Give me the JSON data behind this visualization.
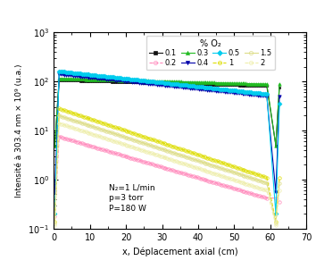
{
  "ylabel": "Intensité à 303.4 nm × 10⁹ (u.a.)",
  "xlabel": "x, Déplacement axial (cm)",
  "xlim": [
    0,
    70
  ],
  "ylim": [
    0.1,
    1000
  ],
  "annotation": "N₂=1 L/min\np=3 torr\nP=180 W",
  "legend_title": "% O₂",
  "series": [
    {
      "label": "0.1",
      "color": "#111111",
      "marker": "s",
      "mfc": "#111111",
      "mec": "#111111",
      "ls": "-",
      "lw": 0.8,
      "ms": 2.0,
      "x_left": 0.3,
      "y_left": 5.0,
      "x_p0": 1.5,
      "y_p0": 105,
      "x_p1": 59,
      "y_p1": 80,
      "x_right": 61.5,
      "y_right": 5.0,
      "x_r": 62.5,
      "y_r": 75
    },
    {
      "label": "0.2",
      "color": "#ff88bb",
      "marker": "o",
      "mfc": "none",
      "mec": "#ff88bb",
      "ls": "--",
      "lw": 0.8,
      "ms": 2.5,
      "x_left": 0.3,
      "y_left": 0.18,
      "x_p0": 1.5,
      "y_p0": 7.5,
      "x_p1": 59,
      "y_p1": 0.42,
      "x_right": 61.5,
      "y_right": 0.42,
      "x_r": 62.5,
      "y_r": 0.35
    },
    {
      "label": "0.3",
      "color": "#22bb22",
      "marker": "^",
      "mfc": "#22bb22",
      "mec": "#22bb22",
      "ls": "-",
      "lw": 0.8,
      "ms": 2.5,
      "x_left": 0.3,
      "y_left": 5.0,
      "x_p0": 1.5,
      "y_p0": 115,
      "x_p1": 59,
      "y_p1": 88,
      "x_right": 61.5,
      "y_right": 5.0,
      "x_r": 62.5,
      "y_r": 88
    },
    {
      "label": "0.4",
      "color": "#0000aa",
      "marker": "v",
      "mfc": "#0000aa",
      "mec": "#0000aa",
      "ls": "-",
      "lw": 0.8,
      "ms": 2.5,
      "x_left": 0.3,
      "y_left": 0.55,
      "x_p0": 1.5,
      "y_p0": 140,
      "x_p1": 59,
      "y_p1": 50,
      "x_right": 61.5,
      "y_right": 0.55,
      "x_r": 62.5,
      "y_r": 50
    },
    {
      "label": "0.5",
      "color": "#00ccee",
      "marker": "D",
      "mfc": "#00ccee",
      "mec": "#00ccee",
      "ls": "-",
      "lw": 0.8,
      "ms": 2.5,
      "x_left": 0.3,
      "y_left": 0.2,
      "x_p0": 1.5,
      "y_p0": 160,
      "x_p1": 59,
      "y_p1": 55,
      "x_right": 61.5,
      "y_right": 0.2,
      "x_r": 62.5,
      "y_r": 35
    },
    {
      "label": "1",
      "color": "#dddd00",
      "marker": "o",
      "mfc": "none",
      "mec": "#dddd00",
      "ls": "--",
      "lw": 0.8,
      "ms": 2.5,
      "x_left": 0.3,
      "y_left": 0.14,
      "x_p0": 1.5,
      "y_p0": 28,
      "x_p1": 59,
      "y_p1": 1.1,
      "x_right": 61.5,
      "y_right": 0.14,
      "x_r": 62.5,
      "y_r": 1.1
    },
    {
      "label": "1.5",
      "color": "#dddd88",
      "marker": "o",
      "mfc": "none",
      "mec": "#dddd88",
      "ls": "-",
      "lw": 0.8,
      "ms": 2.5,
      "x_left": 0.3,
      "y_left": 0.13,
      "x_p0": 1.5,
      "y_p0": 20,
      "x_p1": 59,
      "y_p1": 0.85,
      "x_right": 61.5,
      "y_right": 0.13,
      "x_r": 62.5,
      "y_r": 0.85
    },
    {
      "label": "2",
      "color": "#eeeeaa",
      "marker": "o",
      "mfc": "none",
      "mec": "#eeeeaa",
      "ls": "--",
      "lw": 0.8,
      "ms": 2.5,
      "x_left": 0.3,
      "y_left": 0.12,
      "x_p0": 1.5,
      "y_p0": 14,
      "x_p1": 59,
      "y_p1": 0.6,
      "x_right": 61.5,
      "y_right": 0.12,
      "x_r": 62.5,
      "y_r": 0.6
    }
  ]
}
